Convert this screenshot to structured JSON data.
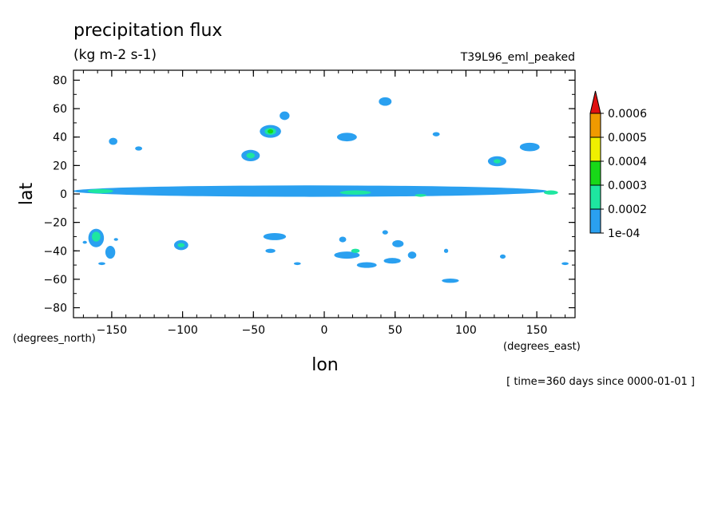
{
  "chart_data": {
    "type": "heatmap",
    "title": "precipitation flux",
    "units": "(kg m-2 s-1)",
    "dataset": "T39L96_eml_peaked",
    "xlabel": "lon",
    "ylabel": "lat",
    "x_units": "(degrees_east)",
    "y_units": "(degrees_north)",
    "time_label": "[ time=360 days since 0000-01-01 ]",
    "xlim": [
      -177,
      177
    ],
    "ylim": [
      -87,
      87
    ],
    "x_ticks": [
      -150,
      -100,
      -50,
      0,
      50,
      100,
      150
    ],
    "y_ticks": [
      80,
      60,
      40,
      20,
      0,
      -20,
      -40,
      -60,
      -80
    ],
    "x_tick_labels": [
      "−150",
      "−100",
      "−50",
      "0",
      "50",
      "100",
      "150"
    ],
    "y_tick_labels": [
      "80",
      "60",
      "40",
      "20",
      "0",
      "−20",
      "−40",
      "−60",
      "−80"
    ],
    "colorbar": {
      "levels": [
        "1e-04",
        "0.0002",
        "0.0003",
        "0.0004",
        "0.0005",
        "0.0006"
      ],
      "colors": [
        "#2aa0f0",
        "#1ee6a0",
        "#18d818",
        "#f0f000",
        "#f09a00",
        "#e01010"
      ]
    },
    "features": [
      {
        "lon": -10,
        "lat": 2,
        "dlon": 335,
        "dlat": 8,
        "level": 0
      },
      {
        "lon": -158,
        "lat": 2,
        "dlon": 18,
        "dlat": 3,
        "level": 1
      },
      {
        "lon": 22,
        "lat": 1,
        "dlon": 22,
        "dlat": 3,
        "level": 1
      },
      {
        "lon": 68,
        "lat": -1,
        "dlon": 8,
        "dlat": 2,
        "level": 1
      },
      {
        "lon": 160,
        "lat": 1,
        "dlon": 10,
        "dlat": 3,
        "level": 1
      },
      {
        "lon": -38,
        "lat": 44,
        "dlon": 15,
        "dlat": 9,
        "level": 0
      },
      {
        "lon": -38,
        "lat": 44,
        "dlon": 8,
        "dlat": 5,
        "level": 1
      },
      {
        "lon": -38,
        "lat": 44,
        "dlon": 4,
        "dlat": 3,
        "level": 2
      },
      {
        "lon": -52,
        "lat": 27,
        "dlon": 13,
        "dlat": 8,
        "level": 0
      },
      {
        "lon": -52,
        "lat": 27,
        "dlon": 6,
        "dlat": 4,
        "level": 1
      },
      {
        "lon": -28,
        "lat": 55,
        "dlon": 7,
        "dlat": 6,
        "level": 0
      },
      {
        "lon": 43,
        "lat": 65,
        "dlon": 9,
        "dlat": 6,
        "level": 0
      },
      {
        "lon": 16,
        "lat": 40,
        "dlon": 14,
        "dlat": 6,
        "level": 0
      },
      {
        "lon": 79,
        "lat": 42,
        "dlon": 5,
        "dlat": 3,
        "level": 0
      },
      {
        "lon": 122,
        "lat": 23,
        "dlon": 13,
        "dlat": 7,
        "level": 0
      },
      {
        "lon": 122,
        "lat": 23,
        "dlon": 5,
        "dlat": 3,
        "level": 1
      },
      {
        "lon": 145,
        "lat": 33,
        "dlon": 14,
        "dlat": 6,
        "level": 0
      },
      {
        "lon": -149,
        "lat": 37,
        "dlon": 6,
        "dlat": 5,
        "level": 0
      },
      {
        "lon": -131,
        "lat": 32,
        "dlon": 5,
        "dlat": 3,
        "level": 0
      },
      {
        "lon": -161,
        "lat": -31,
        "dlon": 11,
        "dlat": 13,
        "level": 0
      },
      {
        "lon": -161,
        "lat": -30,
        "dlon": 6,
        "dlat": 7,
        "level": 1
      },
      {
        "lon": -151,
        "lat": -41,
        "dlon": 7,
        "dlat": 9,
        "level": 0
      },
      {
        "lon": -101,
        "lat": -36,
        "dlon": 10,
        "dlat": 7,
        "level": 0
      },
      {
        "lon": -101,
        "lat": -36,
        "dlon": 5,
        "dlat": 3,
        "level": 1
      },
      {
        "lon": -35,
        "lat": -30,
        "dlon": 16,
        "dlat": 5,
        "level": 0
      },
      {
        "lon": -38,
        "lat": -40,
        "dlon": 7,
        "dlat": 3,
        "level": 0
      },
      {
        "lon": 13,
        "lat": -32,
        "dlon": 5,
        "dlat": 4,
        "level": 0
      },
      {
        "lon": 16,
        "lat": -43,
        "dlon": 18,
        "dlat": 5,
        "level": 0
      },
      {
        "lon": 22,
        "lat": -40,
        "dlon": 6,
        "dlat": 3,
        "level": 1
      },
      {
        "lon": 52,
        "lat": -35,
        "dlon": 8,
        "dlat": 5,
        "level": 0
      },
      {
        "lon": 30,
        "lat": -50,
        "dlon": 14,
        "dlat": 4,
        "level": 0
      },
      {
        "lon": 48,
        "lat": -47,
        "dlon": 12,
        "dlat": 4,
        "level": 0
      },
      {
        "lon": 62,
        "lat": -43,
        "dlon": 6,
        "dlat": 5,
        "level": 0
      },
      {
        "lon": 43,
        "lat": -27,
        "dlon": 4,
        "dlat": 3,
        "level": 0
      },
      {
        "lon": 89,
        "lat": -61,
        "dlon": 12,
        "dlat": 3,
        "level": 0
      },
      {
        "lon": 86,
        "lat": -40,
        "dlon": 3,
        "dlat": 3,
        "level": 0
      },
      {
        "lon": 126,
        "lat": -44,
        "dlon": 4,
        "dlat": 3,
        "level": 0
      },
      {
        "lon": -157,
        "lat": -49,
        "dlon": 5,
        "dlat": 2,
        "level": 0
      },
      {
        "lon": -19,
        "lat": -49,
        "dlon": 5,
        "dlat": 2,
        "level": 0
      },
      {
        "lon": 170,
        "lat": -49,
        "dlon": 5,
        "dlat": 2,
        "level": 0
      },
      {
        "lon": -169,
        "lat": -34,
        "dlon": 3,
        "dlat": 2,
        "level": 0
      },
      {
        "lon": -147,
        "lat": -32,
        "dlon": 3,
        "dlat": 2,
        "level": 0
      }
    ]
  }
}
